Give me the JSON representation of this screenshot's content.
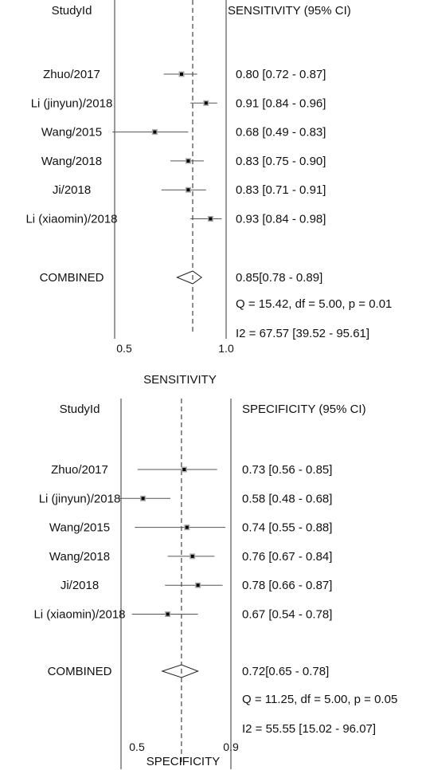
{
  "chart_data": [
    {
      "type": "forest",
      "header_left": "StudyId",
      "header_right": "SENSITIVITY (95% CI)",
      "xlabel": "SENSITIVITY",
      "xlim": [
        0.5,
        1.0
      ],
      "tick_labels": [
        "0.5",
        "1.0"
      ],
      "reference_line": 0.85,
      "studies": [
        {
          "name": "Zhuo/2017",
          "estimate": 0.8,
          "lower": 0.72,
          "upper": 0.87,
          "label": "0.80 [0.72 - 0.87]"
        },
        {
          "name": "Li (jinyun)/2018",
          "estimate": 0.91,
          "lower": 0.84,
          "upper": 0.96,
          "label": "0.91 [0.84 - 0.96]"
        },
        {
          "name": "Wang/2015",
          "estimate": 0.68,
          "lower": 0.49,
          "upper": 0.83,
          "label": "0.68 [0.49 - 0.83]"
        },
        {
          "name": "Wang/2018",
          "estimate": 0.83,
          "lower": 0.75,
          "upper": 0.9,
          "label": "0.83 [0.75 - 0.90]"
        },
        {
          "name": "Ji/2018",
          "estimate": 0.83,
          "lower": 0.71,
          "upper": 0.91,
          "label": "0.83 [0.71 - 0.91]"
        },
        {
          "name": "Li (xiaomin)/2018",
          "estimate": 0.93,
          "lower": 0.84,
          "upper": 0.98,
          "label": "0.93 [0.84 - 0.98]"
        }
      ],
      "combined": {
        "name": "COMBINED",
        "estimate": 0.85,
        "lower": 0.78,
        "upper": 0.89,
        "label": "0.85[0.78 - 0.89]"
      },
      "stats": [
        "Q = 15.42, df = 5.00, p =  0.01",
        "I2 = 67.57 [39.52 - 95.61]"
      ]
    },
    {
      "type": "forest",
      "header_left": "StudyId",
      "header_right": "SPECIFICITY (95% CI)",
      "xlabel": "SPECIFICITY",
      "xlim": [
        0.5,
        0.9
      ],
      "tick_labels": [
        "0.5",
        "0.9"
      ],
      "reference_line": 0.72,
      "studies": [
        {
          "name": "Zhuo/2017",
          "estimate": 0.73,
          "lower": 0.56,
          "upper": 0.85,
          "label": "0.73 [0.56 - 0.85]"
        },
        {
          "name": "Li (jinyun)/2018",
          "estimate": 0.58,
          "lower": 0.48,
          "upper": 0.68,
          "label": "0.58 [0.48 - 0.68]"
        },
        {
          "name": "Wang/2015",
          "estimate": 0.74,
          "lower": 0.55,
          "upper": 0.88,
          "label": "0.74 [0.55 - 0.88]"
        },
        {
          "name": "Wang/2018",
          "estimate": 0.76,
          "lower": 0.67,
          "upper": 0.84,
          "label": "0.76 [0.67 - 0.84]"
        },
        {
          "name": "Ji/2018",
          "estimate": 0.78,
          "lower": 0.66,
          "upper": 0.87,
          "label": "0.78 [0.66 - 0.87]"
        },
        {
          "name": "Li (xiaomin)/2018",
          "estimate": 0.67,
          "lower": 0.54,
          "upper": 0.78,
          "label": "0.67 [0.54 - 0.78]"
        }
      ],
      "combined": {
        "name": "COMBINED",
        "estimate": 0.72,
        "lower": 0.65,
        "upper": 0.78,
        "label": "0.72[0.65 - 0.78]"
      },
      "stats": [
        "Q = 11.25, df = 5.00, p =  0.05",
        "I2 = 55.55 [15.02 - 96.07]"
      ]
    }
  ]
}
